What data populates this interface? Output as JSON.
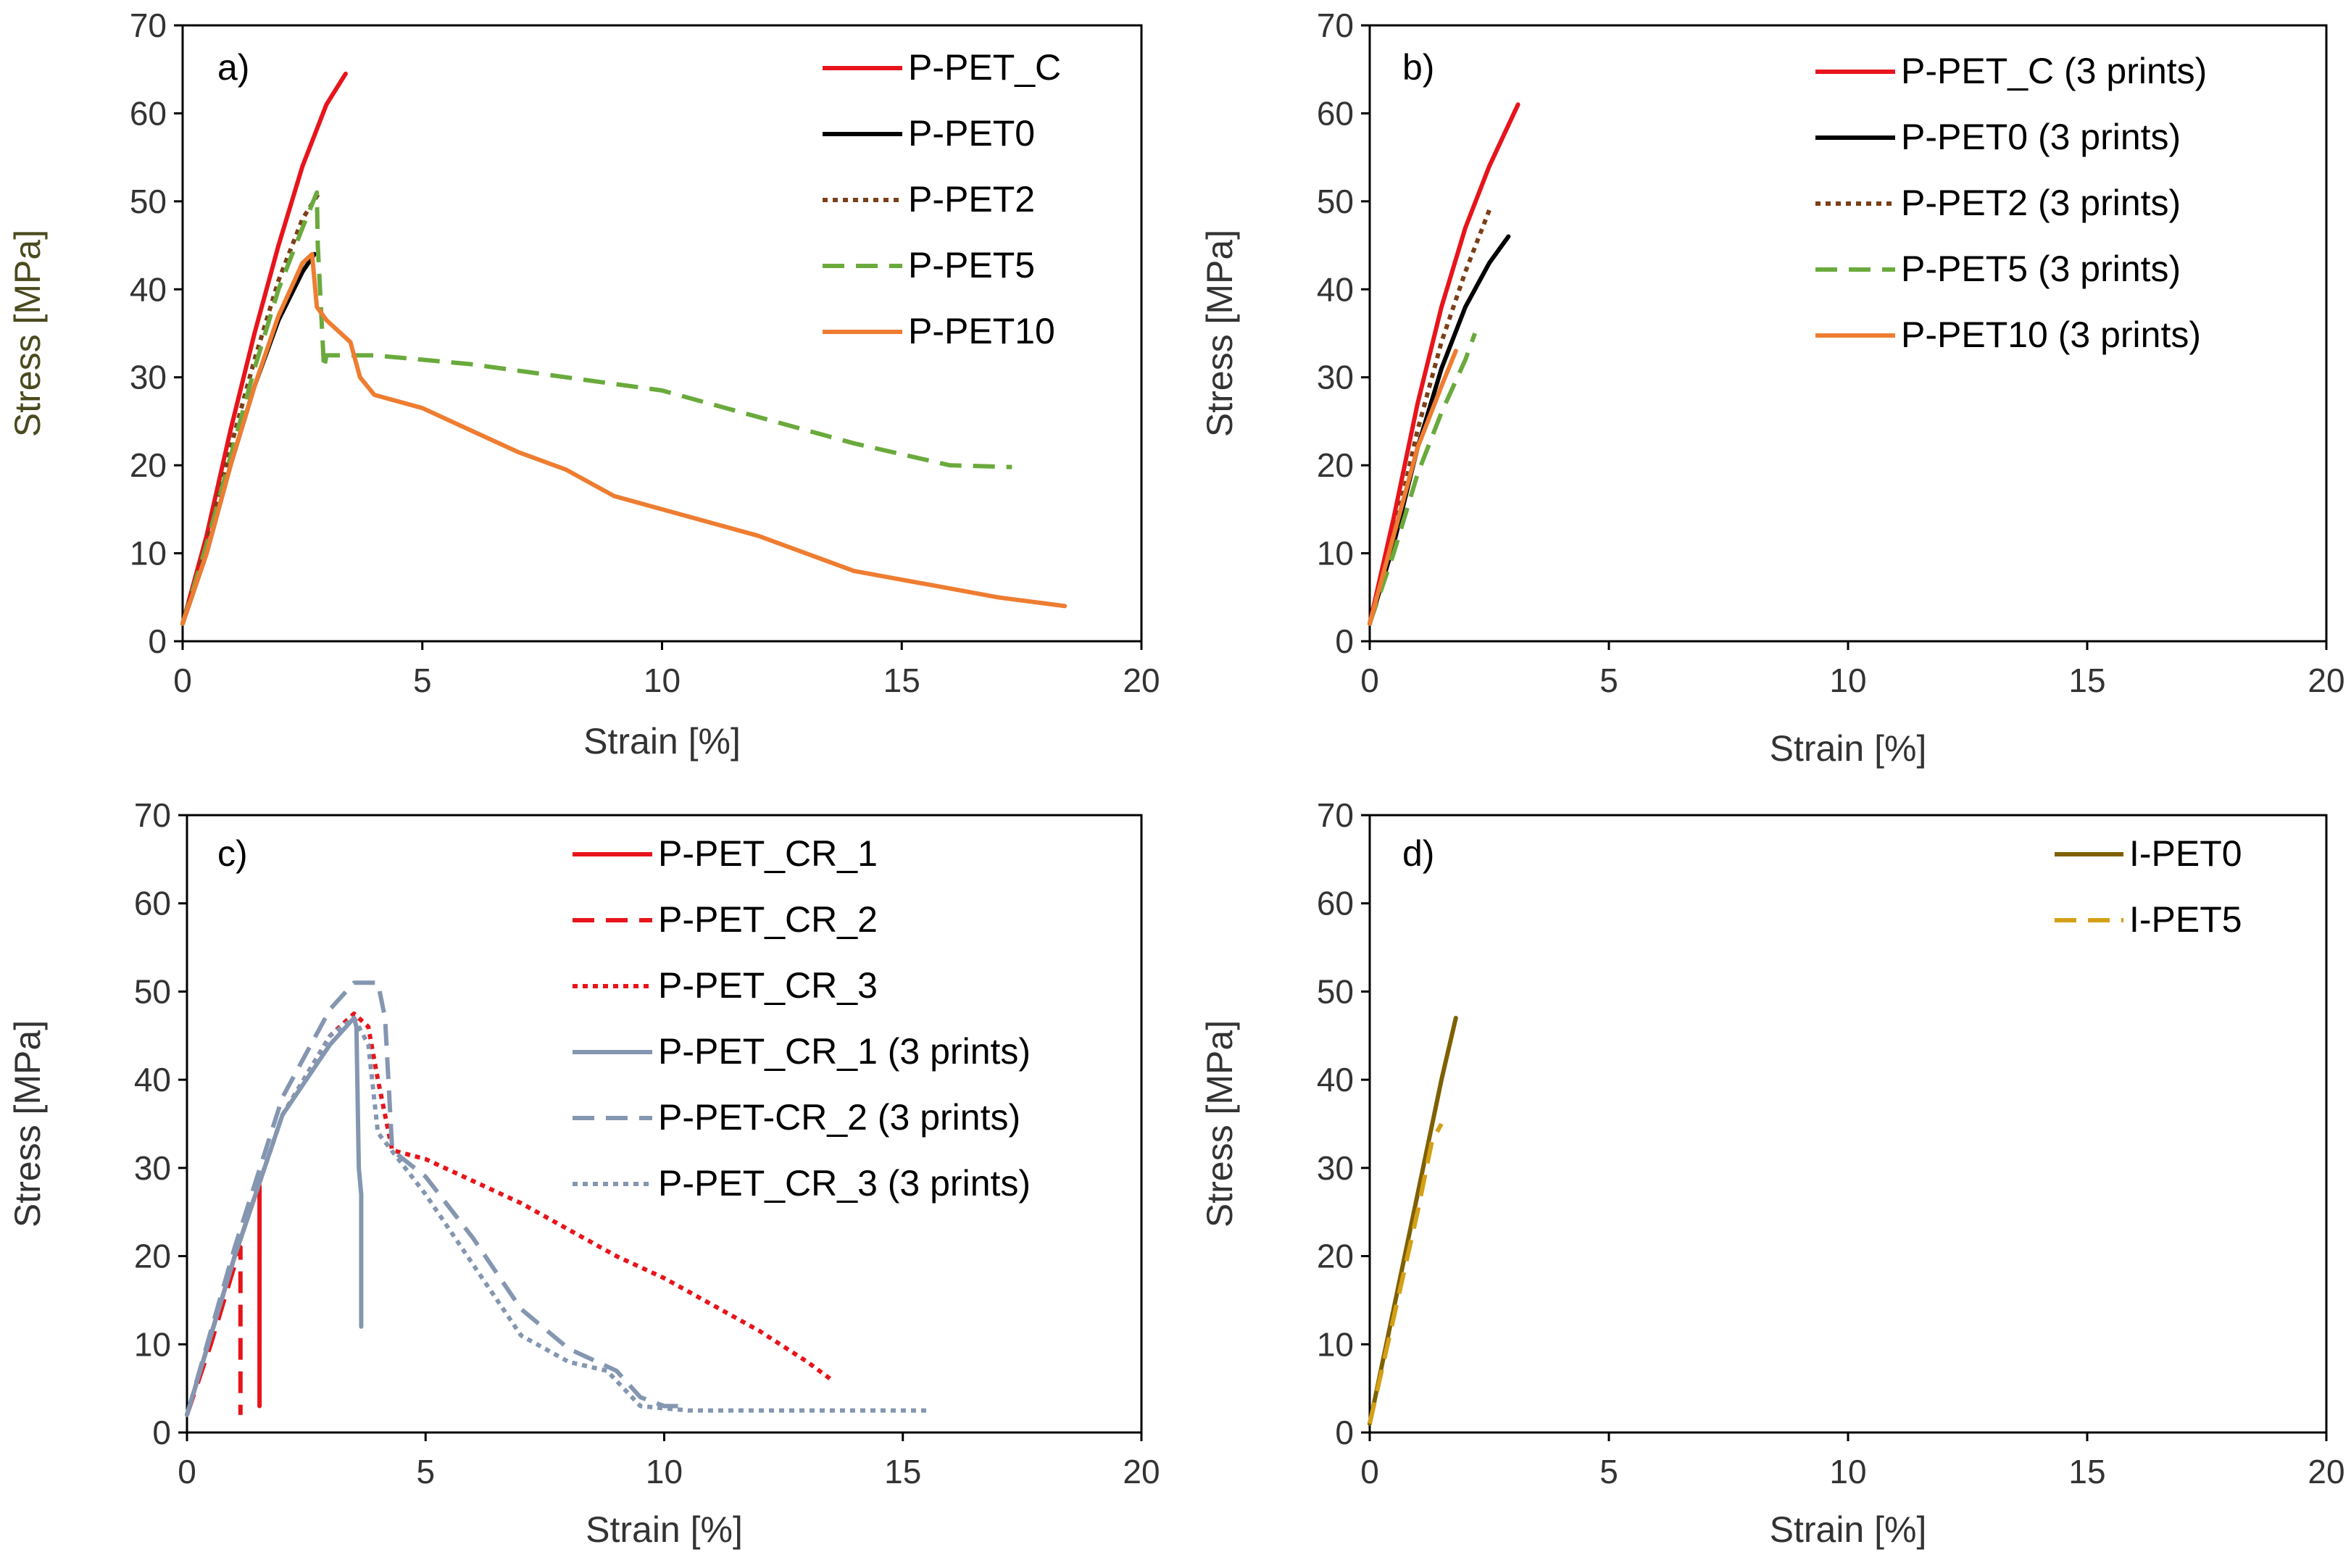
{
  "figure": "Stress-strain curves",
  "chart_data": [
    {
      "type": "line",
      "panel_label": "a)",
      "xlabel": "Strain [%]",
      "ylabel": "Stress [MPa]",
      "xlim": [
        0,
        20
      ],
      "ylim": [
        0,
        70
      ],
      "xticks": [
        0,
        5,
        10,
        15,
        20
      ],
      "yticks": [
        0,
        10,
        20,
        30,
        40,
        50,
        60,
        70
      ],
      "grid": false,
      "legend": "top-right",
      "series": [
        {
          "name": "P-PET_C",
          "color": "#e8141b",
          "dash": "solid",
          "x": [
            0,
            0.5,
            1.0,
            1.5,
            2.0,
            2.5,
            3.0,
            3.4
          ],
          "y": [
            2,
            12,
            24,
            35,
            45,
            54,
            61,
            64.5
          ]
        },
        {
          "name": "P-PET0",
          "color": "#000000",
          "dash": "solid",
          "x": [
            0,
            0.5,
            1.0,
            1.5,
            2.0,
            2.5,
            2.75
          ],
          "y": [
            2,
            10,
            20,
            29,
            36.5,
            42,
            44
          ]
        },
        {
          "name": "P-PET2",
          "color": "#7b3f18",
          "dash": "dot",
          "x": [
            0,
            0.5,
            1.0,
            1.5,
            2.0,
            2.5,
            2.85
          ],
          "y": [
            2,
            11,
            22,
            32,
            41,
            48,
            51
          ]
        },
        {
          "name": "P-PET5",
          "color": "#6aaa3c",
          "dash": "dash",
          "x": [
            0,
            0.5,
            1.0,
            1.5,
            2.0,
            2.5,
            2.8,
            2.82,
            2.95,
            3.0,
            4,
            6,
            8,
            10,
            12,
            14,
            16,
            17.3
          ],
          "y": [
            2,
            11,
            21,
            31,
            40,
            47,
            51,
            45,
            31,
            32.5,
            32.5,
            31.5,
            30,
            28.5,
            25.5,
            22.5,
            20,
            19.8
          ]
        },
        {
          "name": "P-PET10",
          "color": "#ee7d31",
          "dash": "solid",
          "x": [
            0,
            0.5,
            1.0,
            1.5,
            2.0,
            2.5,
            2.7,
            2.8,
            3.0,
            3.5,
            3.7,
            4.0,
            5,
            6,
            7,
            8,
            9,
            10,
            12,
            14,
            16,
            17,
            18.4
          ],
          "y": [
            2,
            10,
            20,
            29,
            37,
            43,
            44,
            38,
            36.5,
            34,
            30,
            28,
            26.5,
            24,
            21.5,
            19.5,
            16.5,
            15,
            12,
            8,
            6,
            5,
            4
          ]
        }
      ]
    },
    {
      "type": "line",
      "panel_label": "b)",
      "xlabel": "Strain [%]",
      "ylabel": "Stress [MPa]",
      "xlim": [
        0,
        20
      ],
      "ylim": [
        0,
        70
      ],
      "xticks": [
        0,
        5,
        10,
        15,
        20
      ],
      "yticks": [
        0,
        10,
        20,
        30,
        40,
        50,
        60,
        70
      ],
      "grid": false,
      "legend": "top-right",
      "series": [
        {
          "name": "P-PET_C (3 prints)",
          "color": "#e8141b",
          "dash": "solid",
          "x": [
            0,
            0.5,
            1.0,
            1.5,
            2.0,
            2.5,
            3.1
          ],
          "y": [
            2,
            14,
            27,
            38,
            47,
            54,
            61
          ]
        },
        {
          "name": "P-PET0 (3 prints)",
          "color": "#000000",
          "dash": "solid",
          "x": [
            0,
            0.5,
            1.0,
            1.5,
            2.0,
            2.5,
            2.9
          ],
          "y": [
            2,
            11,
            22,
            31,
            38,
            43,
            46
          ]
        },
        {
          "name": "P-PET2 (3 prints)",
          "color": "#7b3f18",
          "dash": "dot",
          "x": [
            0,
            0.5,
            1.0,
            1.5,
            2.0,
            2.5
          ],
          "y": [
            2,
            12,
            24,
            34,
            42,
            49
          ]
        },
        {
          "name": "P-PET5 (3 prints)",
          "color": "#6aaa3c",
          "dash": "dash",
          "x": [
            0,
            0.5,
            1.0,
            1.5,
            2.0,
            2.2
          ],
          "y": [
            2,
            10,
            19,
            26,
            32,
            35
          ]
        },
        {
          "name": "P-PET10 (3 prints)",
          "color": "#ee7d31",
          "dash": "solid",
          "x": [
            0,
            0.5,
            1.0,
            1.5,
            1.8
          ],
          "y": [
            2,
            12,
            22,
            29,
            33
          ]
        }
      ]
    },
    {
      "type": "line",
      "panel_label": "c)",
      "xlabel": "Strain [%]",
      "ylabel": "Stress [MPa]",
      "xlim": [
        0,
        20
      ],
      "ylim": [
        0,
        70
      ],
      "xticks": [
        0,
        5,
        10,
        15,
        20
      ],
      "yticks": [
        0,
        10,
        20,
        30,
        40,
        50,
        60,
        70
      ],
      "grid": false,
      "legend": "top-right",
      "series": [
        {
          "name": "P-PET_CR_1",
          "color": "#e8141b",
          "dash": "solid",
          "x": [
            0,
            0.5,
            1.0,
            1.5,
            1.52,
            1.52
          ],
          "y": [
            2,
            11,
            20,
            28,
            28,
            3
          ]
        },
        {
          "name": "P-PET_CR_2",
          "color": "#e8141b",
          "dash": "dash",
          "x": [
            0,
            0.5,
            1.0,
            1.12,
            1.12
          ],
          "y": [
            2,
            10,
            19,
            21,
            2
          ]
        },
        {
          "name": "P-PET_CR_3",
          "color": "#e8141b",
          "dash": "dot",
          "x": [
            0,
            1,
            2,
            3,
            3.5,
            3.8,
            4.0,
            4.3,
            5,
            6,
            7,
            8,
            9,
            10,
            11,
            12,
            13,
            13.5
          ],
          "y": [
            2,
            20,
            36,
            45,
            47.5,
            46,
            40,
            32,
            31,
            28.5,
            26,
            23,
            20,
            17.5,
            14.5,
            11.5,
            8,
            6
          ]
        },
        {
          "name": "P-PET_CR_1 (3 prints)",
          "color": "#8496b0",
          "dash": "solid",
          "x": [
            0,
            1,
            2,
            3,
            3.5,
            3.55,
            3.6,
            3.65,
            3.65
          ],
          "y": [
            2,
            20,
            36,
            44,
            47,
            46,
            30,
            27,
            12
          ]
        },
        {
          "name": "P-PET-CR_2 (3 prints)",
          "color": "#8496b0",
          "dash": "dash",
          "x": [
            0,
            1,
            2,
            3,
            3.5,
            4.0,
            4.15,
            4.3,
            5,
            6,
            7,
            8,
            9,
            9.5,
            10,
            10.5
          ],
          "y": [
            2,
            21,
            38,
            48,
            51,
            51,
            47,
            32,
            29,
            22,
            14,
            9.5,
            7,
            4,
            3,
            3
          ]
        },
        {
          "name": "P-PET_CR_3 (3 prints)",
          "color": "#8496b0",
          "dash": "dot",
          "x": [
            0,
            1,
            2,
            3,
            3.5,
            3.8,
            4.0,
            5,
            6,
            7,
            8,
            8.8,
            9.5,
            10.5,
            12,
            14,
            15.5
          ],
          "y": [
            2,
            20,
            36,
            45,
            47,
            44,
            34,
            27,
            19,
            11,
            8,
            7,
            3,
            2.5,
            2.5,
            2.5,
            2.5
          ]
        }
      ]
    },
    {
      "type": "line",
      "panel_label": "d)",
      "xlabel": "Strain [%]",
      "ylabel": "Stress [MPa]",
      "xlim": [
        0,
        20
      ],
      "ylim": [
        0,
        70
      ],
      "xticks": [
        0,
        5,
        10,
        15,
        20
      ],
      "yticks": [
        0,
        10,
        20,
        30,
        40,
        50,
        60,
        70
      ],
      "grid": false,
      "legend": "top-right",
      "series": [
        {
          "name": "I-PET0",
          "color": "#7f6000",
          "dash": "solid",
          "x": [
            0,
            0.5,
            1.0,
            1.5,
            1.8
          ],
          "y": [
            1,
            14,
            27,
            40,
            47
          ]
        },
        {
          "name": "I-PET5",
          "color": "#d4a017",
          "dash": "dash",
          "x": [
            0,
            0.5,
            1.0,
            1.3,
            1.5
          ],
          "y": [
            1,
            13,
            25,
            33,
            35
          ]
        }
      ]
    }
  ]
}
